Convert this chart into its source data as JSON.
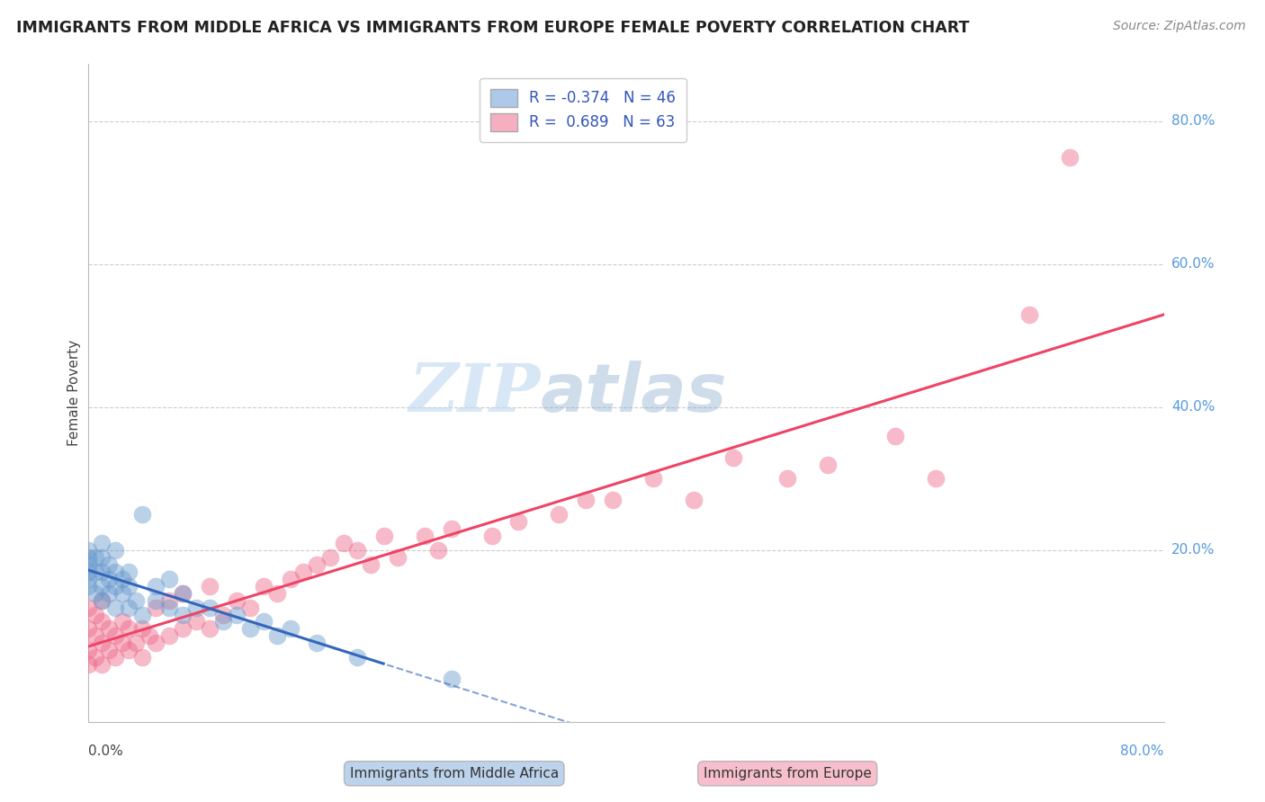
{
  "title": "IMMIGRANTS FROM MIDDLE AFRICA VS IMMIGRANTS FROM EUROPE FEMALE POVERTY CORRELATION CHART",
  "source": "Source: ZipAtlas.com",
  "ylabel": "Female Poverty",
  "xaxis_label_left": "0.0%",
  "xaxis_label_right": "80.0%",
  "ytick_positions": [
    0.2,
    0.4,
    0.6,
    0.8
  ],
  "ytick_labels": [
    "20.0%",
    "40.0%",
    "60.0%",
    "80.0%"
  ],
  "xlim": [
    0.0,
    0.8
  ],
  "ylim": [
    -0.04,
    0.88
  ],
  "series1_label": "Immigrants from Middle Africa",
  "series2_label": "Immigrants from Europe",
  "series1_R": "-0.374",
  "series1_N": "46",
  "series2_R": "0.689",
  "series2_N": "63",
  "series1_color": "#adc8e8",
  "series2_color": "#f5afc0",
  "series1_scatter_color": "#6699cc",
  "series2_scatter_color": "#ee6688",
  "trendline1_color": "#3366bb",
  "trendline2_color": "#ee4466",
  "trendline1_solid_end": 0.22,
  "background_color": "#ffffff",
  "watermark_zip": "ZIP",
  "watermark_atlas": "atlas",
  "grid_color": "#cccccc",
  "legend_text_color": "#3355bb",
  "series1_x": [
    0.0,
    0.0,
    0.0,
    0.0,
    0.0,
    0.0,
    0.005,
    0.005,
    0.005,
    0.01,
    0.01,
    0.01,
    0.01,
    0.01,
    0.015,
    0.015,
    0.015,
    0.02,
    0.02,
    0.02,
    0.02,
    0.025,
    0.025,
    0.03,
    0.03,
    0.03,
    0.035,
    0.04,
    0.04,
    0.05,
    0.05,
    0.06,
    0.06,
    0.07,
    0.07,
    0.08,
    0.09,
    0.1,
    0.11,
    0.12,
    0.13,
    0.14,
    0.15,
    0.17,
    0.2,
    0.27
  ],
  "series1_y": [
    0.15,
    0.16,
    0.17,
    0.18,
    0.19,
    0.2,
    0.14,
    0.17,
    0.19,
    0.13,
    0.15,
    0.17,
    0.19,
    0.21,
    0.14,
    0.16,
    0.18,
    0.12,
    0.15,
    0.17,
    0.2,
    0.14,
    0.16,
    0.12,
    0.15,
    0.17,
    0.13,
    0.11,
    0.25,
    0.13,
    0.15,
    0.12,
    0.16,
    0.11,
    0.14,
    0.12,
    0.12,
    0.1,
    0.11,
    0.09,
    0.1,
    0.08,
    0.09,
    0.07,
    0.05,
    0.02
  ],
  "series2_x": [
    0.0,
    0.0,
    0.0,
    0.0,
    0.005,
    0.005,
    0.005,
    0.01,
    0.01,
    0.01,
    0.01,
    0.015,
    0.015,
    0.02,
    0.02,
    0.025,
    0.025,
    0.03,
    0.03,
    0.035,
    0.04,
    0.04,
    0.045,
    0.05,
    0.05,
    0.06,
    0.06,
    0.07,
    0.07,
    0.08,
    0.09,
    0.09,
    0.1,
    0.11,
    0.12,
    0.13,
    0.14,
    0.15,
    0.16,
    0.17,
    0.18,
    0.19,
    0.2,
    0.21,
    0.22,
    0.23,
    0.25,
    0.26,
    0.27,
    0.3,
    0.32,
    0.35,
    0.37,
    0.39,
    0.42,
    0.45,
    0.48,
    0.52,
    0.55,
    0.6,
    0.63,
    0.7,
    0.73
  ],
  "series2_y": [
    0.04,
    0.06,
    0.09,
    0.12,
    0.05,
    0.08,
    0.11,
    0.04,
    0.07,
    0.1,
    0.13,
    0.06,
    0.09,
    0.05,
    0.08,
    0.07,
    0.1,
    0.06,
    0.09,
    0.07,
    0.05,
    0.09,
    0.08,
    0.07,
    0.12,
    0.08,
    0.13,
    0.09,
    0.14,
    0.1,
    0.09,
    0.15,
    0.11,
    0.13,
    0.12,
    0.15,
    0.14,
    0.16,
    0.17,
    0.18,
    0.19,
    0.21,
    0.2,
    0.18,
    0.22,
    0.19,
    0.22,
    0.2,
    0.23,
    0.22,
    0.24,
    0.25,
    0.27,
    0.27,
    0.3,
    0.27,
    0.33,
    0.3,
    0.32,
    0.36,
    0.3,
    0.53,
    0.75
  ]
}
